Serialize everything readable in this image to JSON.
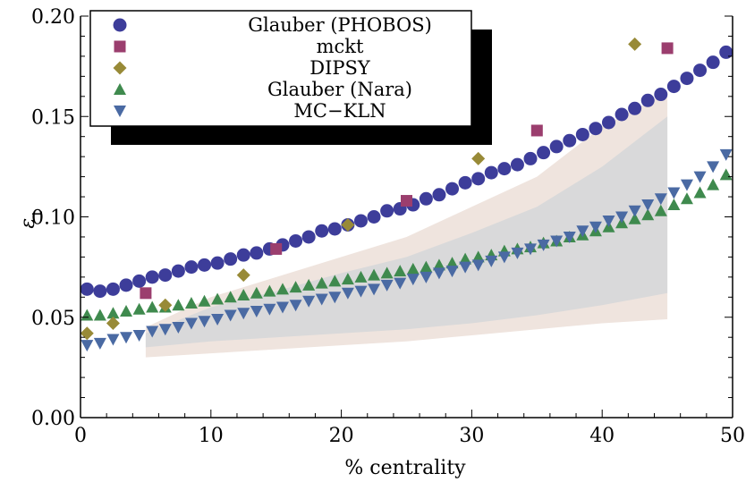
{
  "chart_data": {
    "type": "scatter",
    "xlabel": "% centrality",
    "ylabel": "ε1",
    "xlim": [
      0,
      50
    ],
    "ylim": [
      0,
      0.2
    ],
    "xticks": [
      0,
      10,
      20,
      30,
      40,
      50
    ],
    "xtick_labels": [
      "0",
      "10",
      "20",
      "30",
      "40",
      "50"
    ],
    "yticks": [
      0.0,
      0.05,
      0.1,
      0.15,
      0.2
    ],
    "ytick_labels": [
      "0.00",
      "0.05",
      "0.10",
      "0.15",
      "0.20"
    ],
    "grid": false,
    "legend_position": "top-left",
    "bands": [
      {
        "color": "#efe4de",
        "x": [
          5,
          10,
          15,
          20,
          25,
          30,
          35,
          40,
          45
        ],
        "lower": [
          0.03,
          0.032,
          0.034,
          0.036,
          0.038,
          0.041,
          0.044,
          0.047,
          0.049
        ],
        "upper": [
          0.045,
          0.06,
          0.07,
          0.08,
          0.09,
          0.105,
          0.12,
          0.145,
          0.162
        ]
      },
      {
        "color": "#d9d9da",
        "x": [
          5,
          10,
          15,
          20,
          25,
          30,
          35,
          40,
          45
        ],
        "lower": [
          0.035,
          0.038,
          0.04,
          0.042,
          0.044,
          0.047,
          0.051,
          0.056,
          0.062
        ],
        "upper": [
          0.042,
          0.055,
          0.063,
          0.072,
          0.08,
          0.092,
          0.105,
          0.125,
          0.15
        ]
      }
    ],
    "series": [
      {
        "name": "Glauber (PHOBOS)",
        "marker": "circle",
        "color": "#3d3d9a",
        "x": [
          0.5,
          1.5,
          2.5,
          3.5,
          4.5,
          5.5,
          6.5,
          7.5,
          8.5,
          9.5,
          10.5,
          11.5,
          12.5,
          13.5,
          14.5,
          15.5,
          16.5,
          17.5,
          18.5,
          19.5,
          20.5,
          21.5,
          22.5,
          23.5,
          24.5,
          25.5,
          26.5,
          27.5,
          28.5,
          29.5,
          30.5,
          31.5,
          32.5,
          33.5,
          34.5,
          35.5,
          36.5,
          37.5,
          38.5,
          39.5,
          40.5,
          41.5,
          42.5,
          43.5,
          44.5,
          45.5,
          46.5,
          47.5,
          48.5,
          49.5
        ],
        "y": [
          0.064,
          0.063,
          0.064,
          0.066,
          0.068,
          0.07,
          0.071,
          0.073,
          0.075,
          0.076,
          0.077,
          0.079,
          0.081,
          0.082,
          0.084,
          0.086,
          0.088,
          0.09,
          0.093,
          0.094,
          0.096,
          0.098,
          0.1,
          0.103,
          0.104,
          0.106,
          0.109,
          0.111,
          0.114,
          0.117,
          0.119,
          0.122,
          0.124,
          0.126,
          0.129,
          0.132,
          0.135,
          0.138,
          0.141,
          0.144,
          0.147,
          0.151,
          0.154,
          0.158,
          0.161,
          0.165,
          0.169,
          0.173,
          0.177,
          0.182
        ]
      },
      {
        "name": "mckt",
        "marker": "square",
        "color": "#9b3e6e",
        "x": [
          5,
          15,
          25,
          35,
          45
        ],
        "y": [
          0.062,
          0.084,
          0.108,
          0.143,
          0.184
        ]
      },
      {
        "name": "DIPSY",
        "marker": "diamond",
        "color": "#988a37",
        "x": [
          0.5,
          2.5,
          6.5,
          12.5,
          20.5,
          30.5,
          42.5
        ],
        "y": [
          0.042,
          0.047,
          0.056,
          0.071,
          0.096,
          0.129,
          0.186
        ]
      },
      {
        "name": "Glauber (Nara)",
        "marker": "triangle-up",
        "color": "#3f8a4e",
        "x": [
          0.5,
          1.5,
          2.5,
          3.5,
          4.5,
          5.5,
          6.5,
          7.5,
          8.5,
          9.5,
          10.5,
          11.5,
          12.5,
          13.5,
          14.5,
          15.5,
          16.5,
          17.5,
          18.5,
          19.5,
          20.5,
          21.5,
          22.5,
          23.5,
          24.5,
          25.5,
          26.5,
          27.5,
          28.5,
          29.5,
          30.5,
          31.5,
          32.5,
          33.5,
          34.5,
          35.5,
          36.5,
          37.5,
          38.5,
          39.5,
          40.5,
          41.5,
          42.5,
          43.5,
          44.5,
          45.5,
          46.5,
          47.5,
          48.5,
          49.5
        ],
        "y": [
          0.051,
          0.051,
          0.052,
          0.053,
          0.054,
          0.055,
          0.055,
          0.056,
          0.057,
          0.058,
          0.059,
          0.06,
          0.061,
          0.062,
          0.063,
          0.064,
          0.065,
          0.066,
          0.067,
          0.068,
          0.069,
          0.07,
          0.071,
          0.072,
          0.073,
          0.074,
          0.075,
          0.076,
          0.077,
          0.079,
          0.08,
          0.081,
          0.083,
          0.084,
          0.085,
          0.087,
          0.088,
          0.09,
          0.091,
          0.093,
          0.095,
          0.097,
          0.099,
          0.101,
          0.103,
          0.106,
          0.109,
          0.112,
          0.116,
          0.121
        ]
      },
      {
        "name": "MC−KLN",
        "marker": "triangle-down",
        "color": "#4a6aa3",
        "x": [
          0.5,
          1.5,
          2.5,
          3.5,
          4.5,
          5.5,
          6.5,
          7.5,
          8.5,
          9.5,
          10.5,
          11.5,
          12.5,
          13.5,
          14.5,
          15.5,
          16.5,
          17.5,
          18.5,
          19.5,
          20.5,
          21.5,
          22.5,
          23.5,
          24.5,
          25.5,
          26.5,
          27.5,
          28.5,
          29.5,
          30.5,
          31.5,
          32.5,
          33.5,
          34.5,
          35.5,
          36.5,
          37.5,
          38.5,
          39.5,
          40.5,
          41.5,
          42.5,
          43.5,
          44.5,
          45.5,
          46.5,
          47.5,
          48.5,
          49.5
        ],
        "y": [
          0.036,
          0.037,
          0.039,
          0.04,
          0.041,
          0.043,
          0.044,
          0.045,
          0.047,
          0.048,
          0.049,
          0.051,
          0.052,
          0.053,
          0.054,
          0.055,
          0.056,
          0.058,
          0.059,
          0.06,
          0.062,
          0.063,
          0.064,
          0.066,
          0.067,
          0.069,
          0.07,
          0.072,
          0.073,
          0.075,
          0.076,
          0.078,
          0.08,
          0.082,
          0.084,
          0.086,
          0.088,
          0.09,
          0.093,
          0.095,
          0.098,
          0.1,
          0.103,
          0.106,
          0.109,
          0.112,
          0.116,
          0.12,
          0.125,
          0.131
        ]
      }
    ]
  }
}
